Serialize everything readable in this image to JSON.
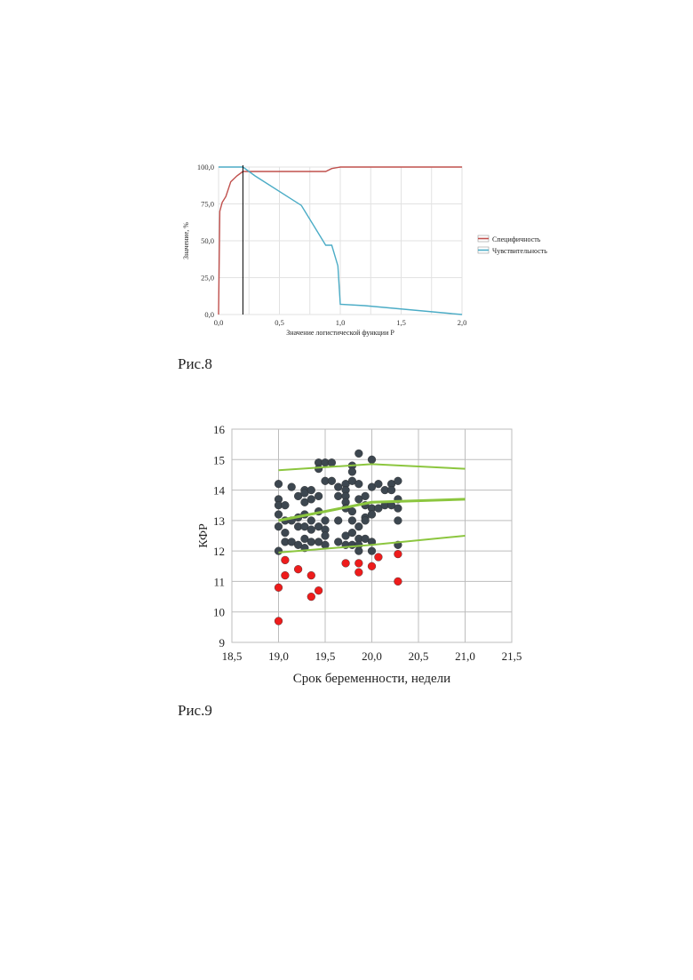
{
  "captions": {
    "fig8": "Рис.8",
    "fig9": "Рис.9"
  },
  "chart_data": [
    {
      "type": "line",
      "title": "",
      "xlabel": "Значение логистической функции P",
      "ylabel": "Значение, %",
      "xlim": [
        0,
        2.0
      ],
      "ylim": [
        0,
        100
      ],
      "x_ticks": [
        0,
        0.5,
        1.0,
        1.5,
        2.0
      ],
      "x_tick_labels": [
        "0,0",
        "0,5",
        "1,0",
        "1,5",
        "2,0"
      ],
      "y_ticks": [
        0,
        25,
        50,
        75,
        100
      ],
      "y_tick_labels": [
        "0,0",
        "25,0",
        "50,0",
        "75,0",
        "100,0"
      ],
      "grid": true,
      "legend": "right",
      "vline_x": 0.2,
      "series": [
        {
          "name": "Специфичность",
          "color": "#c0504d",
          "points": [
            [
              0.0,
              0
            ],
            [
              0.01,
              70
            ],
            [
              0.03,
              76
            ],
            [
              0.06,
              80
            ],
            [
              0.1,
              90
            ],
            [
              0.15,
              94
            ],
            [
              0.2,
              97
            ],
            [
              0.3,
              97
            ],
            [
              0.5,
              97
            ],
            [
              0.7,
              97
            ],
            [
              0.88,
              97
            ],
            [
              0.93,
              99
            ],
            [
              1.0,
              100
            ],
            [
              2.0,
              100
            ]
          ]
        },
        {
          "name": "Чувствительность",
          "color": "#4bacc6",
          "points": [
            [
              0.0,
              100
            ],
            [
              0.2,
              100
            ],
            [
              0.3,
              94
            ],
            [
              0.68,
              74
            ],
            [
              0.88,
              47
            ],
            [
              0.93,
              47
            ],
            [
              0.98,
              33
            ],
            [
              1.0,
              7
            ],
            [
              1.2,
              6
            ],
            [
              2.0,
              0
            ]
          ]
        }
      ]
    },
    {
      "type": "scatter",
      "title": "",
      "xlabel": "Срок беременности, недели",
      "ylabel": "КФР",
      "xlim": [
        18.5,
        21.5
      ],
      "ylim": [
        9,
        16
      ],
      "x_ticks": [
        18.5,
        19.0,
        19.5,
        20.0,
        20.5,
        21.0,
        21.5
      ],
      "x_tick_labels": [
        "18,5",
        "19,0",
        "19,5",
        "20,0",
        "20,5",
        "21,0",
        "21,5"
      ],
      "y_ticks": [
        9,
        10,
        11,
        12,
        13,
        14,
        15,
        16
      ],
      "y_tick_labels": [
        "9",
        "10",
        "11",
        "12",
        "13",
        "14",
        "15",
        "16"
      ],
      "grid": true,
      "series": [
        {
          "color": "#3d4750",
          "points": [
            [
              19.0,
              14.2
            ],
            [
              19.0,
              13.7
            ],
            [
              19.0,
              13.5
            ],
            [
              19.0,
              13.2
            ],
            [
              19.0,
              12.8
            ],
            [
              19.0,
              12.0
            ],
            [
              19.07,
              13.5
            ],
            [
              19.07,
              13.0
            ],
            [
              19.07,
              12.6
            ],
            [
              19.07,
              12.3
            ],
            [
              19.14,
              14.1
            ],
            [
              19.14,
              13.0
            ],
            [
              19.14,
              12.3
            ],
            [
              19.21,
              13.8
            ],
            [
              19.21,
              13.1
            ],
            [
              19.21,
              12.8
            ],
            [
              19.21,
              12.2
            ],
            [
              19.28,
              14.0
            ],
            [
              19.28,
              13.9
            ],
            [
              19.28,
              13.6
            ],
            [
              19.28,
              13.2
            ],
            [
              19.28,
              12.8
            ],
            [
              19.28,
              12.4
            ],
            [
              19.28,
              12.1
            ],
            [
              19.35,
              14.0
            ],
            [
              19.35,
              13.7
            ],
            [
              19.35,
              13.0
            ],
            [
              19.35,
              12.7
            ],
            [
              19.35,
              12.3
            ],
            [
              19.43,
              14.9
            ],
            [
              19.43,
              14.7
            ],
            [
              19.43,
              13.8
            ],
            [
              19.43,
              13.3
            ],
            [
              19.43,
              12.8
            ],
            [
              19.43,
              12.3
            ],
            [
              19.5,
              14.9
            ],
            [
              19.5,
              14.3
            ],
            [
              19.5,
              13.0
            ],
            [
              19.5,
              12.7
            ],
            [
              19.5,
              12.5
            ],
            [
              19.5,
              12.2
            ],
            [
              19.57,
              14.9
            ],
            [
              19.57,
              14.3
            ],
            [
              19.64,
              14.1
            ],
            [
              19.64,
              13.8
            ],
            [
              19.64,
              13.0
            ],
            [
              19.64,
              12.3
            ],
            [
              19.72,
              14.2
            ],
            [
              19.72,
              14.0
            ],
            [
              19.72,
              13.8
            ],
            [
              19.72,
              13.6
            ],
            [
              19.72,
              13.4
            ],
            [
              19.72,
              12.5
            ],
            [
              19.72,
              12.2
            ],
            [
              19.79,
              14.8
            ],
            [
              19.79,
              14.6
            ],
            [
              19.79,
              14.3
            ],
            [
              19.79,
              13.3
            ],
            [
              19.79,
              13.0
            ],
            [
              19.79,
              12.6
            ],
            [
              19.79,
              12.2
            ],
            [
              19.86,
              15.2
            ],
            [
              19.86,
              14.2
            ],
            [
              19.86,
              13.7
            ],
            [
              19.86,
              12.8
            ],
            [
              19.86,
              12.4
            ],
            [
              19.86,
              12.2
            ],
            [
              19.86,
              12.0
            ],
            [
              19.93,
              13.8
            ],
            [
              19.93,
              13.5
            ],
            [
              19.93,
              13.1
            ],
            [
              19.93,
              13.0
            ],
            [
              19.93,
              12.4
            ],
            [
              20.0,
              15.0
            ],
            [
              20.0,
              14.1
            ],
            [
              20.0,
              13.4
            ],
            [
              20.0,
              13.2
            ],
            [
              20.0,
              12.3
            ],
            [
              20.0,
              12.0
            ],
            [
              20.07,
              14.2
            ],
            [
              20.07,
              13.4
            ],
            [
              20.14,
              14.0
            ],
            [
              20.14,
              13.5
            ],
            [
              20.21,
              14.2
            ],
            [
              20.21,
              14.0
            ],
            [
              20.21,
              13.5
            ],
            [
              20.28,
              14.3
            ],
            [
              20.28,
              13.7
            ],
            [
              20.28,
              13.4
            ],
            [
              20.28,
              13.0
            ],
            [
              20.28,
              12.2
            ]
          ]
        },
        {
          "color": "#ee1c1c",
          "points": [
            [
              19.0,
              10.8
            ],
            [
              19.0,
              9.7
            ],
            [
              19.07,
              11.7
            ],
            [
              19.07,
              11.2
            ],
            [
              19.21,
              11.4
            ],
            [
              19.35,
              11.2
            ],
            [
              19.35,
              10.5
            ],
            [
              19.43,
              10.7
            ],
            [
              19.72,
              11.6
            ],
            [
              19.86,
              11.6
            ],
            [
              19.86,
              11.3
            ],
            [
              20.0,
              11.5
            ],
            [
              20.07,
              11.8
            ],
            [
              20.28,
              11.9
            ],
            [
              20.28,
              11.0
            ]
          ]
        }
      ],
      "lines": [
        {
          "color": "#8cc63f",
          "points": [
            [
              19.0,
              14.65
            ],
            [
              20.0,
              14.85
            ],
            [
              21.0,
              14.7
            ]
          ]
        },
        {
          "color": "#8cc63f",
          "points": [
            [
              19.0,
              13.0
            ],
            [
              19.5,
              13.3
            ],
            [
              20.0,
              13.6
            ],
            [
              21.0,
              13.7
            ]
          ]
        },
        {
          "color": "#8cc63f",
          "points": [
            [
              19.0,
              11.95
            ],
            [
              20.0,
              12.2
            ],
            [
              21.0,
              12.5
            ]
          ]
        }
      ]
    }
  ]
}
